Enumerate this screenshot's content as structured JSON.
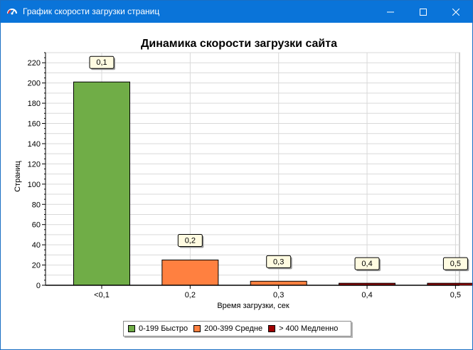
{
  "window": {
    "title": "График скорости загрузки страниц",
    "icon": "gauge-icon",
    "controls": [
      "minimize-icon",
      "maximize-icon",
      "close-icon"
    ]
  },
  "chart_data": {
    "type": "bar",
    "title": "Динамика скорости загрузки сайта",
    "xlabel": "Время загрузки, сек",
    "ylabel": "Страниц",
    "categories": [
      "<0,1",
      "0,2",
      "0,3",
      "0,4",
      "0,5"
    ],
    "values": [
      201,
      25,
      4,
      2,
      2
    ],
    "data_labels": [
      "0,1",
      "0,2",
      "0,3",
      "0,4",
      "0,5"
    ],
    "bar_colors": [
      "#70ad47",
      "#ff8040",
      "#ff8040",
      "#a00000",
      "#a00000"
    ],
    "ylim": [
      0,
      230
    ],
    "yticks": [
      0,
      20,
      40,
      60,
      80,
      100,
      120,
      140,
      160,
      180,
      200,
      220
    ],
    "grid": true,
    "legend_position": "bottom",
    "legend": [
      {
        "label": "0-199 Быстро",
        "color": "#70ad47"
      },
      {
        "label": "200-399 Средне",
        "color": "#ff8040"
      },
      {
        "label": "> 400 Медленно",
        "color": "#a00000"
      }
    ]
  }
}
